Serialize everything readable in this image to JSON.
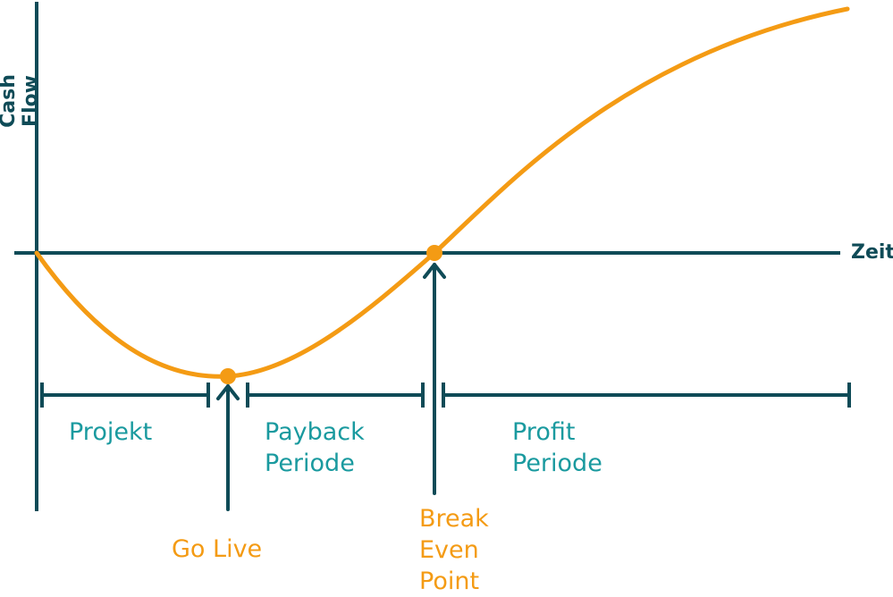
{
  "axes": {
    "y_label": "Cash Flow",
    "x_label": "Zeit"
  },
  "phases": {
    "projekt": "Projekt",
    "payback_line1": "Payback",
    "payback_line2": "Periode",
    "profit_line1": "Profit",
    "profit_line2": "Periode"
  },
  "markers": {
    "go_live": "Go Live",
    "break_even_line1": "Break",
    "break_even_line2": "Even",
    "break_even_line3": "Point"
  },
  "colors": {
    "axis": "#0f4b57",
    "curve": "#f49b14",
    "phase_text": "#1a9a9f"
  }
}
